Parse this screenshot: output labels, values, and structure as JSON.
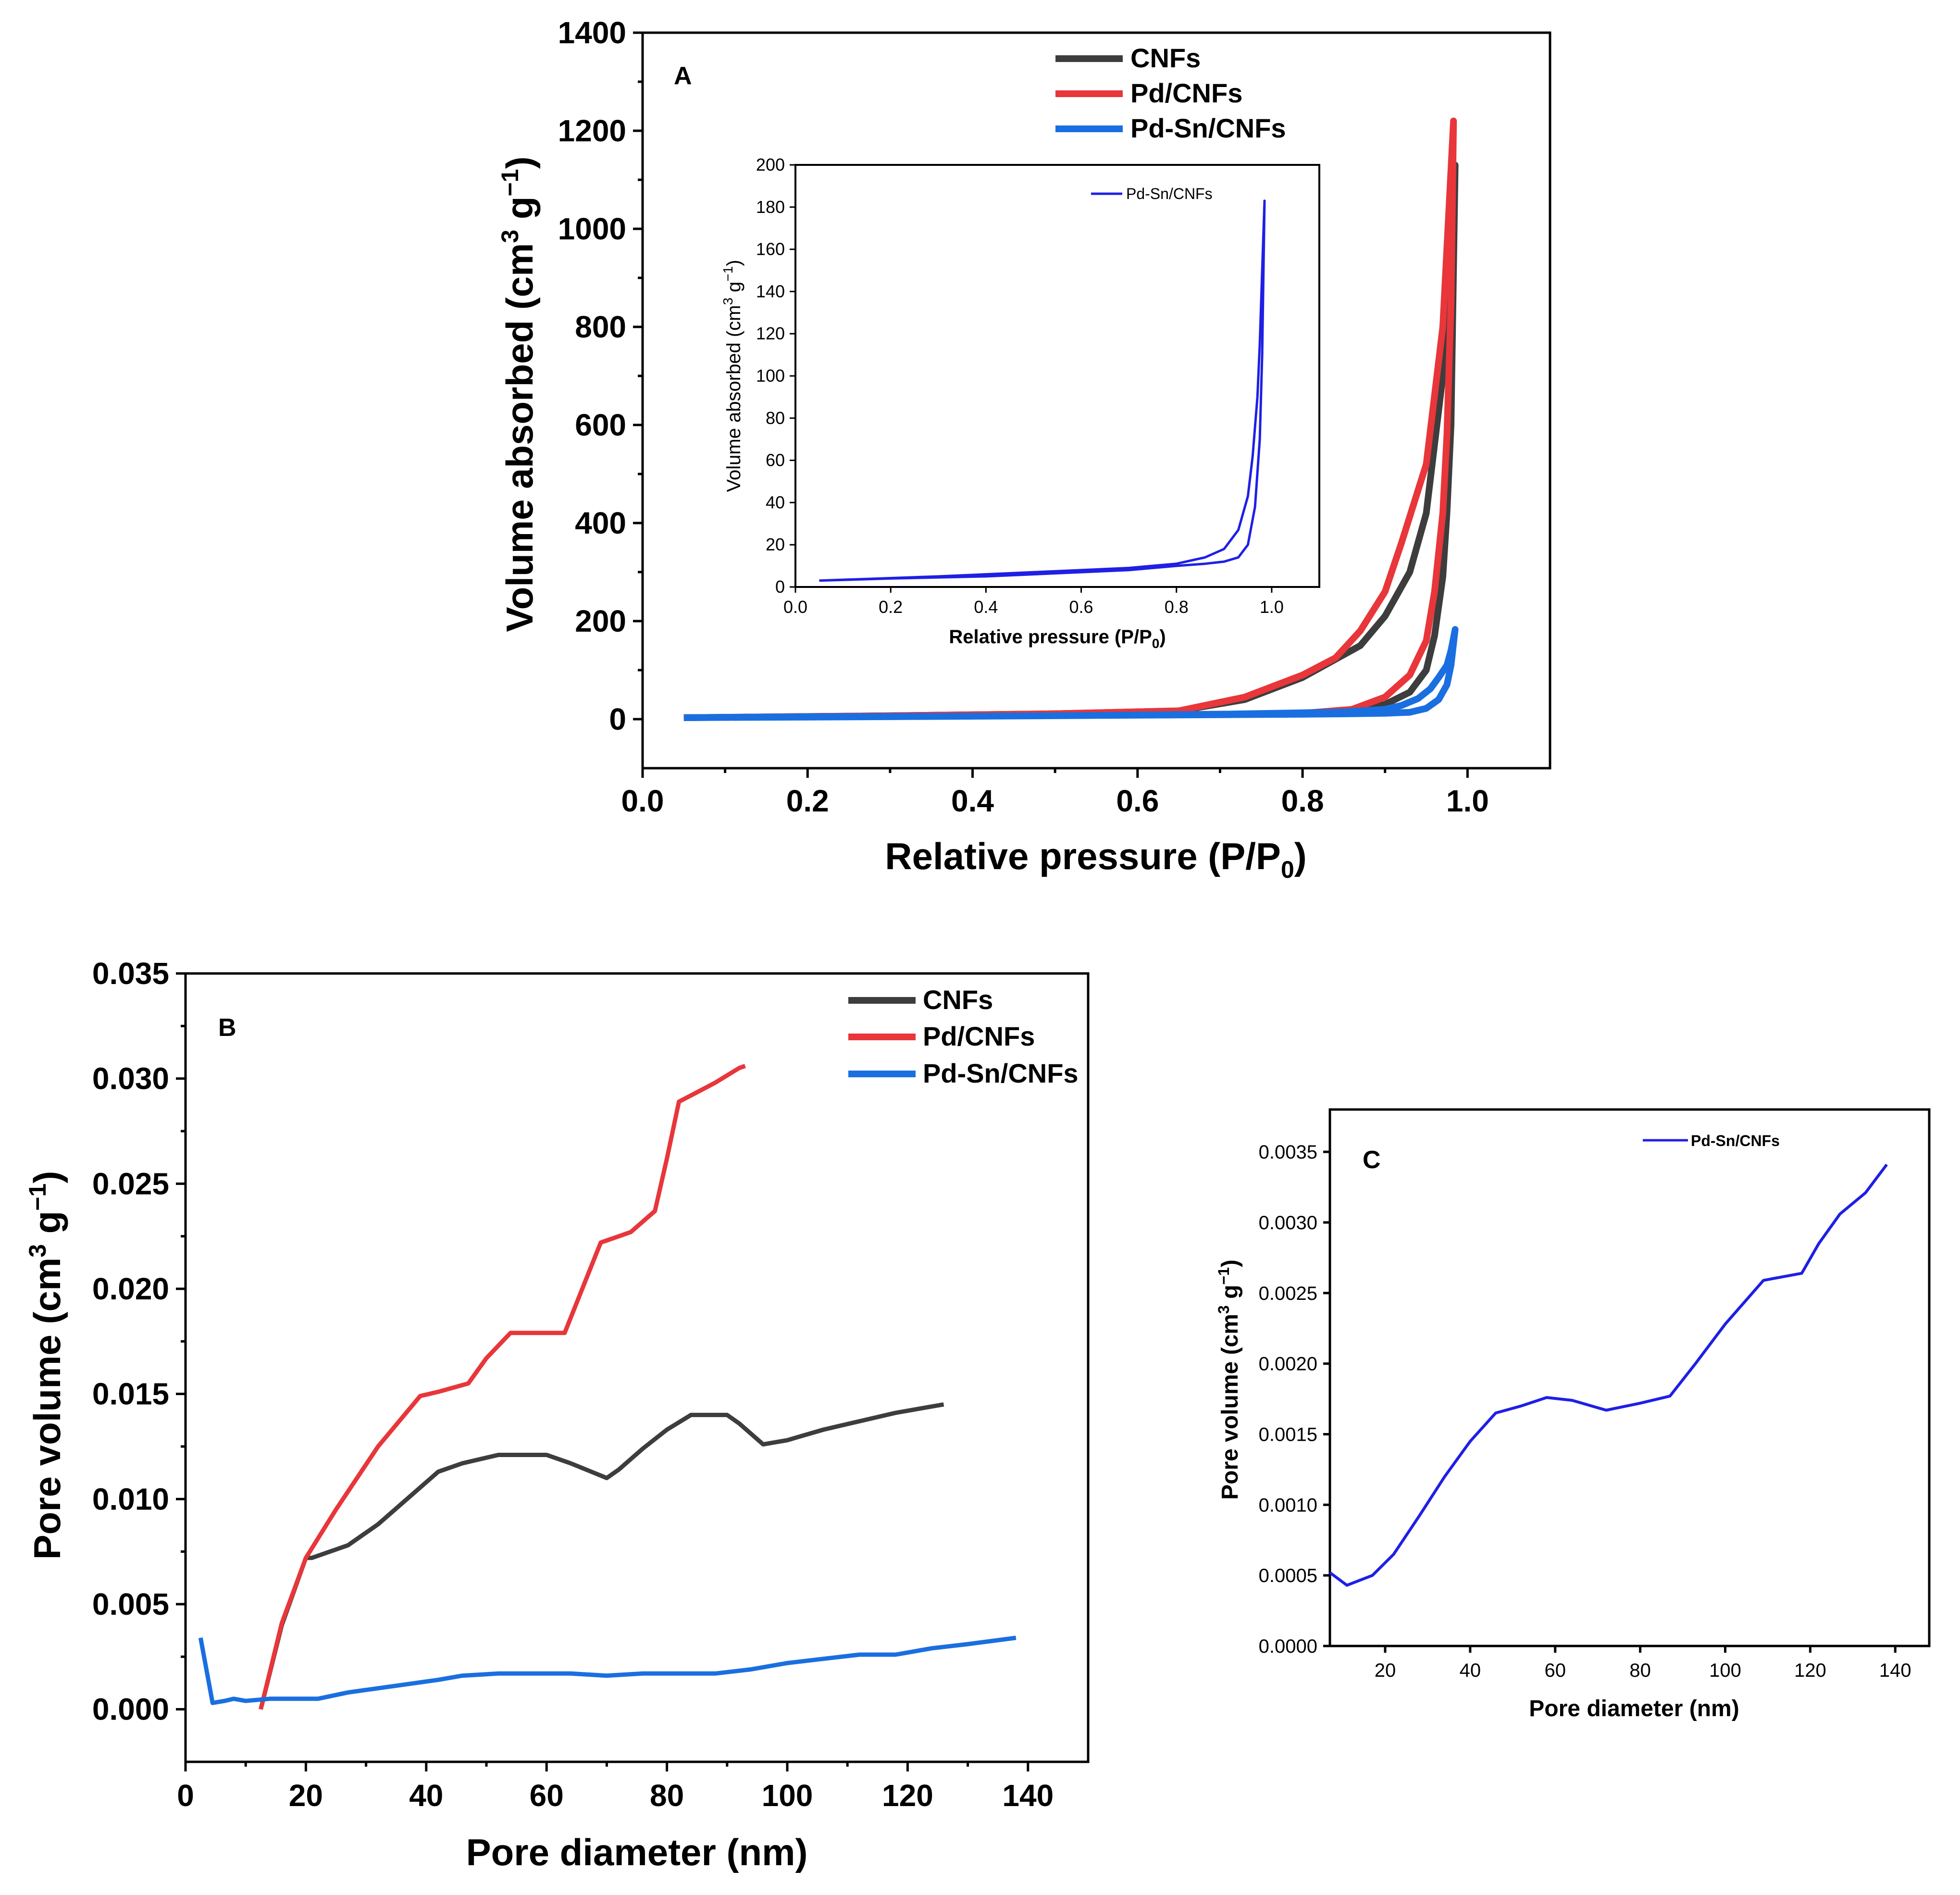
{
  "colors": {
    "CNFs": "#3d3d3d",
    "Pd/CNFs": "#e8363a",
    "Pd-Sn/CNFs": "#1a6fe0",
    "inset": "#1f1fe6"
  },
  "chart_data": [
    {
      "panel": "A",
      "type": "line",
      "xlabel_main": "Relative pressure (P/P",
      "xlabel_sub": "0",
      "xlabel_close": ")",
      "ylabel_main": "Volume absorbed (cm",
      "ylabel_sup1": "3",
      "ylabel_mid": " g",
      "ylabel_sup2": "−1",
      "ylabel_close": ")",
      "xlim": [
        0.0,
        1.1
      ],
      "ylim": [
        -100,
        1400
      ],
      "xticks": [
        "0.0",
        "0.2",
        "0.4",
        "0.6",
        "0.8",
        "1.0"
      ],
      "yticks": [
        "0",
        "200",
        "400",
        "600",
        "800",
        "1000",
        "1200",
        "1400"
      ],
      "legend": [
        "CNFs",
        "Pd/CNFs",
        "Pd-Sn/CNFs"
      ],
      "series": [
        {
          "name": "CNFs",
          "adsorption": [
            [
              0.05,
              3
            ],
            [
              0.2,
              5
            ],
            [
              0.4,
              7
            ],
            [
              0.6,
              9
            ],
            [
              0.7,
              10
            ],
            [
              0.8,
              12
            ],
            [
              0.86,
              18
            ],
            [
              0.9,
              30
            ],
            [
              0.93,
              55
            ],
            [
              0.95,
              100
            ],
            [
              0.96,
              170
            ],
            [
              0.97,
              290
            ],
            [
              0.975,
              420
            ],
            [
              0.98,
              600
            ],
            [
              0.985,
              1130
            ]
          ],
          "desorption": [
            [
              0.985,
              1130
            ],
            [
              0.97,
              700
            ],
            [
              0.95,
              420
            ],
            [
              0.93,
              300
            ],
            [
              0.9,
              210
            ],
            [
              0.87,
              150
            ],
            [
              0.8,
              85
            ],
            [
              0.73,
              40
            ],
            [
              0.65,
              17
            ],
            [
              0.5,
              11
            ],
            [
              0.3,
              7
            ],
            [
              0.05,
              3
            ]
          ]
        },
        {
          "name": "Pd/CNFs",
          "adsorption": [
            [
              0.05,
              3
            ],
            [
              0.2,
              5
            ],
            [
              0.4,
              7
            ],
            [
              0.6,
              9
            ],
            [
              0.7,
              10
            ],
            [
              0.8,
              12
            ],
            [
              0.86,
              20
            ],
            [
              0.9,
              45
            ],
            [
              0.93,
              90
            ],
            [
              0.95,
              160
            ],
            [
              0.96,
              260
            ],
            [
              0.97,
              420
            ],
            [
              0.975,
              580
            ],
            [
              0.98,
              850
            ],
            [
              0.983,
              1220
            ]
          ],
          "desorption": [
            [
              0.983,
              1220
            ],
            [
              0.97,
              800
            ],
            [
              0.95,
              520
            ],
            [
              0.92,
              360
            ],
            [
              0.9,
              260
            ],
            [
              0.87,
              180
            ],
            [
              0.84,
              125
            ],
            [
              0.8,
              90
            ],
            [
              0.73,
              45
            ],
            [
              0.65,
              17
            ],
            [
              0.5,
              11
            ],
            [
              0.3,
              7
            ],
            [
              0.05,
              3
            ]
          ]
        },
        {
          "name": "Pd-Sn/CNFs",
          "adsorption": [
            [
              0.05,
              3
            ],
            [
              0.2,
              5
            ],
            [
              0.4,
              6
            ],
            [
              0.6,
              8
            ],
            [
              0.7,
              9
            ],
            [
              0.8,
              10
            ],
            [
              0.86,
              11
            ],
            [
              0.9,
              12
            ],
            [
              0.93,
              14
            ],
            [
              0.95,
              22
            ],
            [
              0.965,
              40
            ],
            [
              0.975,
              70
            ],
            [
              0.98,
              110
            ],
            [
              0.985,
              183
            ]
          ],
          "desorption": [
            [
              0.985,
              183
            ],
            [
              0.98,
              140
            ],
            [
              0.975,
              110
            ],
            [
              0.965,
              85
            ],
            [
              0.955,
              62
            ],
            [
              0.94,
              42
            ],
            [
              0.92,
              28
            ],
            [
              0.9,
              20
            ],
            [
              0.85,
              15
            ],
            [
              0.8,
              13
            ],
            [
              0.7,
              10
            ],
            [
              0.5,
              7
            ],
            [
              0.3,
              5
            ],
            [
              0.05,
              3
            ]
          ]
        }
      ]
    },
    {
      "panel": "A-inset",
      "type": "line",
      "xlabel_main": "Relative pressure (P/P",
      "xlabel_sub": "0",
      "xlabel_close": ")",
      "ylabel_main": "Volume absorbed (cm",
      "ylabel_sup1": "3",
      "ylabel_mid": " g",
      "ylabel_sup2": "−1",
      "ylabel_close": ")",
      "xlim": [
        0.0,
        1.1
      ],
      "ylim": [
        0,
        200
      ],
      "xticks": [
        "0.0",
        "0.2",
        "0.4",
        "0.6",
        "0.8",
        "1.0"
      ],
      "yticks": [
        "0",
        "20",
        "40",
        "60",
        "80",
        "100",
        "120",
        "140",
        "160",
        "180",
        "200"
      ],
      "legend": [
        "Pd-Sn/CNFs"
      ],
      "series": [
        {
          "name": "Pd-Sn/CNFs",
          "adsorption": [
            [
              0.05,
              3
            ],
            [
              0.2,
              4
            ],
            [
              0.4,
              5
            ],
            [
              0.6,
              7
            ],
            [
              0.7,
              8
            ],
            [
              0.8,
              10
            ],
            [
              0.86,
              11
            ],
            [
              0.9,
              12
            ],
            [
              0.93,
              14
            ],
            [
              0.95,
              20
            ],
            [
              0.965,
              38
            ],
            [
              0.975,
              70
            ],
            [
              0.98,
              110
            ],
            [
              0.985,
              183
            ]
          ],
          "desorption": [
            [
              0.985,
              183
            ],
            [
              0.98,
              150
            ],
            [
              0.975,
              115
            ],
            [
              0.97,
              90
            ],
            [
              0.96,
              62
            ],
            [
              0.95,
              43
            ],
            [
              0.93,
              27
            ],
            [
              0.9,
              18
            ],
            [
              0.86,
              14
            ],
            [
              0.8,
              11
            ],
            [
              0.7,
              9
            ],
            [
              0.5,
              7
            ],
            [
              0.3,
              5
            ],
            [
              0.05,
              3
            ]
          ]
        }
      ]
    },
    {
      "panel": "B",
      "type": "line",
      "xlabel": "Pore diameter (nm)",
      "ylabel_main": "Pore volume (cm",
      "ylabel_sup1": "3",
      "ylabel_mid": " g",
      "ylabel_sup2": "−1",
      "ylabel_close": ")",
      "xlim": [
        0,
        150
      ],
      "ylim": [
        -0.0025,
        0.035
      ],
      "xticks": [
        "0",
        "20",
        "40",
        "60",
        "80",
        "100",
        "120",
        "140"
      ],
      "yticks": [
        "0.000",
        "0.005",
        "0.010",
        "0.015",
        "0.020",
        "0.025",
        "0.030",
        "0.035"
      ],
      "legend": [
        "CNFs",
        "Pd/CNFs",
        "Pd-Sn/CNFs"
      ],
      "series": [
        {
          "name": "CNFs",
          "x": [
            12.5,
            16,
            20,
            21,
            26,
            27,
            32,
            38,
            42,
            46,
            52,
            58,
            60,
            64,
            70,
            72,
            76,
            80,
            84,
            86,
            90,
            92,
            96,
            100,
            106,
            112,
            118,
            126
          ],
          "y": [
            0.0,
            0.004,
            0.0072,
            0.0072,
            0.0077,
            0.0078,
            0.0088,
            0.0103,
            0.0113,
            0.0117,
            0.0121,
            0.0121,
            0.0121,
            0.0117,
            0.011,
            0.0114,
            0.0124,
            0.0133,
            0.014,
            0.014,
            0.014,
            0.0136,
            0.0126,
            0.0128,
            0.0133,
            0.0137,
            0.0141,
            0.0145
          ]
        },
        {
          "name": "Pd/CNFs",
          "x": [
            12.5,
            16,
            20,
            25,
            32,
            39,
            42,
            47,
            50,
            54,
            58,
            60,
            63,
            69,
            72,
            74,
            78,
            80,
            82,
            84,
            88,
            92,
            93
          ],
          "y": [
            0.0,
            0.0041,
            0.0072,
            0.0095,
            0.0125,
            0.0149,
            0.0151,
            0.0155,
            0.0167,
            0.0179,
            0.0179,
            0.0179,
            0.0179,
            0.0222,
            0.0225,
            0.0227,
            0.0237,
            0.0262,
            0.0289,
            0.0292,
            0.0298,
            0.0305,
            0.0306
          ]
        },
        {
          "name": "Pd-Sn/CNFs",
          "x": [
            2.5,
            4.5,
            6.5,
            8,
            10,
            14,
            18,
            22,
            27,
            32,
            37,
            42,
            46,
            52,
            58,
            64,
            70,
            76,
            82,
            88,
            94,
            100,
            106,
            112,
            118,
            124,
            130,
            138
          ],
          "y": [
            0.0034,
            0.0003,
            0.0004,
            0.0005,
            0.0004,
            0.0005,
            0.0005,
            0.0005,
            0.0008,
            0.001,
            0.0012,
            0.0014,
            0.0016,
            0.0017,
            0.0017,
            0.0017,
            0.0016,
            0.0017,
            0.0017,
            0.0017,
            0.0019,
            0.0022,
            0.0024,
            0.0026,
            0.0026,
            0.0029,
            0.0031,
            0.0034
          ]
        }
      ]
    },
    {
      "panel": "C",
      "type": "line",
      "xlabel": "Pore diameter (nm)",
      "ylabel_main": "Pore volume (cm",
      "ylabel_sup1": "3",
      "ylabel_mid": " g",
      "ylabel_sup2": "−1",
      "ylabel_close": ")",
      "xlim": [
        7,
        148
      ],
      "ylim": [
        0,
        0.0038
      ],
      "xticks": [
        "20",
        "40",
        "60",
        "80",
        "100",
        "120",
        "140"
      ],
      "yticks": [
        "0.0000",
        "0.0005",
        "0.0010",
        "0.0015",
        "0.0020",
        "0.0025",
        "0.0030",
        "0.0035"
      ],
      "legend": [
        "Pd-Sn/CNFs"
      ],
      "series": [
        {
          "name": "Pd-Sn/CNFs",
          "x": [
            7,
            11,
            17,
            22,
            28,
            34,
            40,
            46,
            52,
            58,
            64,
            72,
            80,
            87,
            93,
            100,
            109,
            118,
            122,
            127,
            133,
            138
          ],
          "y": [
            0.00052,
            0.00043,
            0.0005,
            0.00065,
            0.00092,
            0.0012,
            0.00145,
            0.00165,
            0.0017,
            0.00176,
            0.00174,
            0.00167,
            0.00172,
            0.00177,
            0.002,
            0.00228,
            0.00259,
            0.00264,
            0.00285,
            0.00306,
            0.00321,
            0.00341
          ]
        }
      ]
    }
  ],
  "panel_tags": {
    "a": "A",
    "b": "B",
    "c": "C"
  }
}
